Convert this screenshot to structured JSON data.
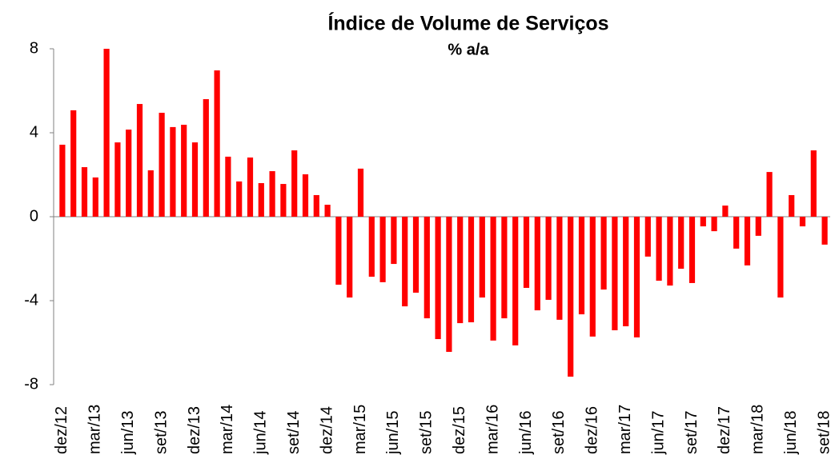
{
  "chart_data": {
    "type": "bar",
    "title": "Índice de Volume de Serviços",
    "subtitle": "% a/a",
    "categories": [
      "dez/12",
      null,
      null,
      "mar/13",
      null,
      null,
      "jun/13",
      null,
      null,
      "set/13",
      null,
      null,
      "dez/13",
      null,
      null,
      "mar/14",
      null,
      null,
      "jun/14",
      null,
      null,
      "set/14",
      null,
      null,
      "dez/14",
      null,
      null,
      "mar/15",
      null,
      null,
      "jun/15",
      null,
      null,
      "set/15",
      null,
      null,
      "dez/15",
      null,
      null,
      "mar/16",
      null,
      null,
      "jun/16",
      null,
      null,
      "set/16",
      null,
      null,
      "dez/16",
      null,
      null,
      "mar/17",
      null,
      null,
      "jun/17",
      null,
      null,
      "set/17",
      null,
      null,
      "dez/17",
      null,
      null,
      "mar/18",
      null,
      null,
      "jun/18",
      null,
      null,
      "set/18"
    ],
    "values": [
      3.43,
      5.07,
      2.36,
      1.87,
      8.0,
      3.54,
      4.15,
      5.37,
      2.21,
      4.95,
      4.27,
      4.38,
      3.54,
      5.6,
      6.97,
      2.86,
      1.68,
      2.82,
      1.6,
      2.17,
      1.56,
      3.16,
      2.02,
      1.03,
      0.57,
      -3.24,
      -3.85,
      2.29,
      -2.86,
      -3.12,
      -2.25,
      -4.27,
      -3.62,
      -4.84,
      -5.83,
      -6.44,
      -5.07,
      -5.03,
      -3.85,
      -5.9,
      -4.84,
      -6.13,
      -3.39,
      -4.46,
      -3.96,
      -4.91,
      -7.62,
      -4.65,
      -5.71,
      -3.47,
      -5.41,
      -5.22,
      -5.75,
      -1.9,
      -3.05,
      -3.28,
      -2.48,
      -3.16,
      -0.46,
      -0.69,
      0.53,
      -1.52,
      -2.32,
      -0.91,
      2.13,
      -3.85,
      1.03,
      -0.46,
      3.16,
      -1.33
    ],
    "color": "#ff0000",
    "ylim": [
      -8,
      8
    ],
    "yticks": [
      -8,
      -4,
      0,
      4,
      8
    ],
    "grid": false
  }
}
